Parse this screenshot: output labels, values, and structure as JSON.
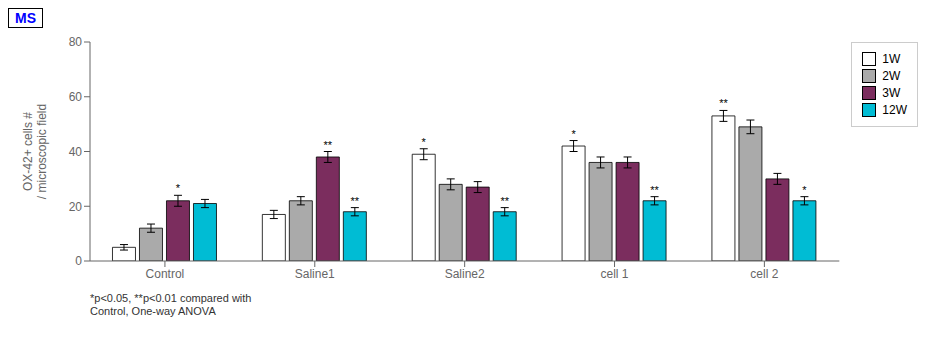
{
  "chart_data": {
    "type": "bar",
    "categories": [
      "Control",
      "Saline1",
      "Saline2",
      "cell 1",
      "cell 2"
    ],
    "series": [
      {
        "name": "1W",
        "color": "#ffffff",
        "values": [
          5,
          17,
          39,
          42,
          53
        ],
        "errors": [
          1.0,
          1.5,
          2.0,
          2.0,
          2.0
        ]
      },
      {
        "name": "2W",
        "color": "#aaaaaa",
        "values": [
          12,
          22,
          28,
          36,
          49
        ],
        "errors": [
          1.5,
          1.5,
          2.0,
          2.0,
          2.5
        ]
      },
      {
        "name": "3W",
        "color": "#7b2d5e",
        "values": [
          22,
          38,
          27,
          36,
          30
        ],
        "errors": [
          2.0,
          2.0,
          2.0,
          2.0,
          2.0
        ]
      },
      {
        "name": "12W",
        "color": "#00bcd4",
        "values": [
          21,
          18,
          18,
          22,
          22
        ],
        "errors": [
          1.5,
          1.5,
          1.5,
          1.5,
          1.5
        ]
      }
    ],
    "ylabel": "OX-42+ cells #\n/ microscopic field",
    "ylim": [
      0,
      80
    ],
    "yticks": [
      0,
      20,
      40,
      60,
      80
    ],
    "grid": false,
    "legend": "upper right",
    "footnote": "*p<0.05, **p<0.01 compared with\nControl, One-way ANOVA",
    "annotations": [
      {
        "category": "Control",
        "series": "3W",
        "text": "*"
      },
      {
        "category": "Saline1",
        "series": "3W",
        "text": "**"
      },
      {
        "category": "Saline1",
        "series": "12W",
        "text": "**"
      },
      {
        "category": "Saline2",
        "series": "1W",
        "text": "*"
      },
      {
        "category": "Saline2",
        "series": "12W",
        "text": "**"
      },
      {
        "category": "cell 1",
        "series": "1W",
        "text": "*"
      },
      {
        "category": "cell 1",
        "series": "12W",
        "text": "**"
      },
      {
        "category": "cell 2",
        "series": "1W",
        "text": "**"
      },
      {
        "category": "cell 2",
        "series": "12W",
        "text": "*"
      },
      {
        "text": "MS",
        "color": "#0000ff"
      }
    ]
  }
}
